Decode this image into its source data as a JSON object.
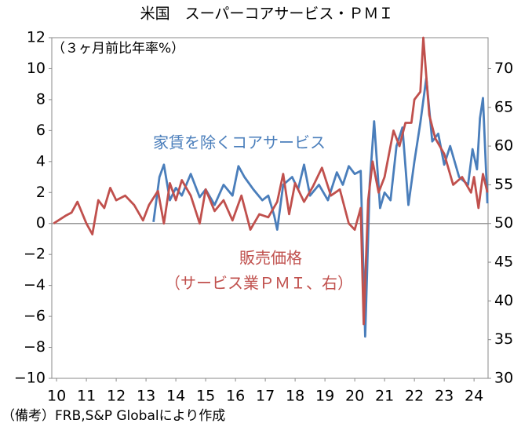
{
  "chart_data": {
    "type": "line",
    "title": "米国　スーパーコアサービス・ＰＭＩ",
    "y_label": "（３ヶ月前比年率%）",
    "footnote": "（備考）FRB,S&P Globalにより作成",
    "xlim": [
      2009.84,
      2024.47
    ],
    "xticks": [
      {
        "value": 2010,
        "label": "10"
      },
      {
        "value": 2011,
        "label": "11"
      },
      {
        "value": 2012,
        "label": "12"
      },
      {
        "value": 2013,
        "label": "13"
      },
      {
        "value": 2014,
        "label": "14"
      },
      {
        "value": 2015,
        "label": "15"
      },
      {
        "value": 2016,
        "label": "16"
      },
      {
        "value": 2017,
        "label": "17"
      },
      {
        "value": 2018,
        "label": "18"
      },
      {
        "value": 2019,
        "label": "19"
      },
      {
        "value": 2020,
        "label": "20"
      },
      {
        "value": 2021,
        "label": "21"
      },
      {
        "value": 2022,
        "label": "22"
      },
      {
        "value": 2023,
        "label": "23"
      },
      {
        "value": 2024,
        "label": "24"
      }
    ],
    "ylim": [
      -10,
      12
    ],
    "yticks": [
      {
        "value": -10,
        "label": "−10"
      },
      {
        "value": -8,
        "label": "−8"
      },
      {
        "value": -6,
        "label": "−6"
      },
      {
        "value": -4,
        "label": "−4"
      },
      {
        "value": -2,
        "label": "−2"
      },
      0,
      2,
      4,
      6,
      8,
      10,
      12
    ],
    "y2lim": [
      30,
      74
    ],
    "y2ticks": [
      30,
      35,
      40,
      45,
      50,
      55,
      60,
      65,
      70
    ],
    "series": [
      {
        "name": "家賃を除くコアサービス",
        "color": "#4a7ebb",
        "x": [
          2013.25,
          2013.45,
          2013.6,
          2013.8,
          2014.0,
          2014.2,
          2014.5,
          2014.8,
          2015.0,
          2015.3,
          2015.6,
          2015.9,
          2016.1,
          2016.3,
          2016.6,
          2016.9,
          2017.1,
          2017.3,
          2017.4,
          2017.6,
          2017.9,
          2018.1,
          2018.3,
          2018.5,
          2018.8,
          2019.1,
          2019.4,
          2019.6,
          2019.8,
          2020.0,
          2020.2,
          2020.35,
          2020.5,
          2020.65,
          2020.85,
          2021.0,
          2021.2,
          2021.4,
          2021.6,
          2021.8,
          2022.0,
          2022.2,
          2022.4,
          2022.6,
          2022.8,
          2023.0,
          2023.2,
          2023.5,
          2023.8,
          2023.95,
          2024.1,
          2024.2,
          2024.3,
          2024.45
        ],
        "values": [
          0.1,
          3.0,
          3.8,
          1.5,
          2.3,
          1.8,
          3.2,
          1.7,
          2.2,
          1.2,
          2.5,
          1.8,
          3.7,
          3.0,
          2.2,
          1.5,
          1.8,
          0.5,
          -0.4,
          2.5,
          3.0,
          2.2,
          3.8,
          1.8,
          2.5,
          1.5,
          3.3,
          2.5,
          3.7,
          3.2,
          3.4,
          -7.3,
          2.5,
          6.6,
          1.0,
          2.0,
          1.5,
          5.0,
          6.2,
          1.2,
          4.0,
          6.5,
          9.4,
          5.3,
          5.8,
          3.8,
          5.0,
          3.0,
          2.5,
          4.8,
          3.5,
          6.8,
          8.1,
          1.3
        ]
      },
      {
        "name": "販売価格",
        "name_note": "（サービス業ＰＭＩ、右）",
        "color": "#c0504d",
        "axis": "y2",
        "x": [
          2009.9,
          2010.3,
          2010.5,
          2010.7,
          2011.0,
          2011.2,
          2011.4,
          2011.6,
          2011.8,
          2012.0,
          2012.3,
          2012.6,
          2012.9,
          2013.1,
          2013.4,
          2013.6,
          2013.8,
          2014.0,
          2014.2,
          2014.5,
          2014.8,
          2015.0,
          2015.3,
          2015.6,
          2015.9,
          2016.2,
          2016.5,
          2016.8,
          2017.1,
          2017.4,
          2017.6,
          2017.8,
          2018.0,
          2018.3,
          2018.6,
          2018.9,
          2019.2,
          2019.5,
          2019.8,
          2020.0,
          2020.2,
          2020.3,
          2020.45,
          2020.6,
          2020.8,
          2021.0,
          2021.3,
          2021.5,
          2021.7,
          2021.9,
          2022.0,
          2022.2,
          2022.3,
          2022.5,
          2022.7,
          2023.0,
          2023.3,
          2023.6,
          2023.9,
          2024.0,
          2024.15,
          2024.3,
          2024.45
        ],
        "values": [
          50,
          51,
          51.4,
          52.8,
          50,
          48.6,
          53,
          52,
          54.6,
          53,
          53.6,
          52.4,
          50.4,
          52.4,
          54.2,
          50,
          55.2,
          53,
          55.6,
          53.6,
          50,
          54.4,
          51.6,
          53,
          50.4,
          53.6,
          49.2,
          51.2,
          50.8,
          52.8,
          56.4,
          51.2,
          55.2,
          52.8,
          54.8,
          57.2,
          53.6,
          54.4,
          50,
          49.2,
          52,
          37,
          53,
          58,
          54,
          56,
          62,
          60,
          63,
          63,
          66,
          67,
          74,
          64,
          61,
          59,
          55,
          56,
          54,
          56,
          52,
          56.4,
          54
        ]
      }
    ]
  }
}
